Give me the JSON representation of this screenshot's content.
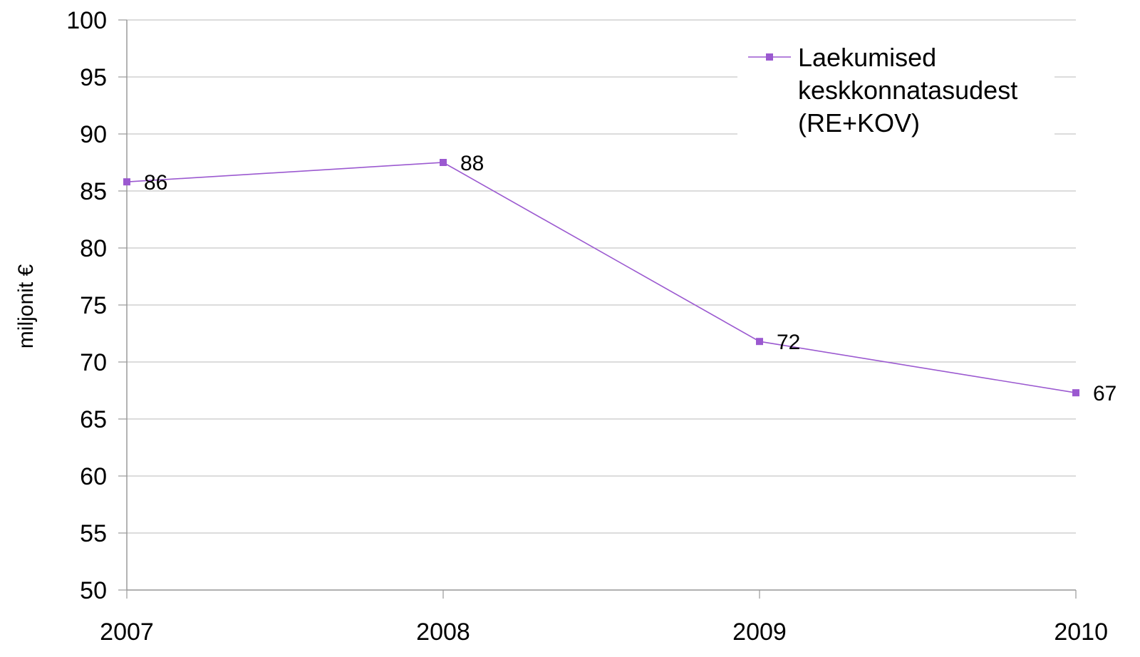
{
  "chart_data": {
    "type": "line",
    "title": "",
    "xlabel": "",
    "ylabel": "miljonit €",
    "categories": [
      "2007",
      "2008",
      "2009",
      "2010"
    ],
    "series": [
      {
        "name": "Laekumised keskkonnatasudest (RE+KOV)",
        "legend_lines": [
          "Laekumised",
          "keskkonnatasudest",
          "(RE+KOV)"
        ],
        "values": [
          85.8,
          87.5,
          71.8,
          67.3
        ],
        "data_labels": [
          "86",
          "88",
          "72",
          "67"
        ],
        "color": "#9b59d0"
      }
    ],
    "ylim": [
      50,
      100
    ],
    "ytick_labels": [
      "50",
      "55",
      "60",
      "65",
      "70",
      "75",
      "80",
      "85",
      "90",
      "95",
      "100"
    ],
    "grid": true,
    "legend_position": "top-right"
  }
}
